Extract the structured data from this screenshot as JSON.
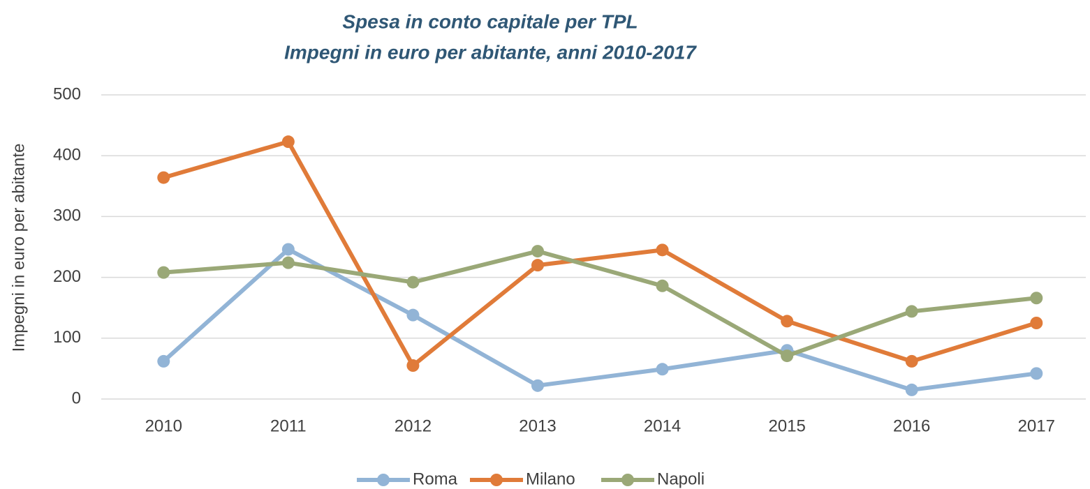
{
  "chart_data": {
    "type": "line",
    "title": "Spesa in conto capitale per TPL",
    "subtitle": "Impegni in euro per abitante, anni 2010-2017",
    "y_label": "Impegni  in euro per abitante",
    "categories": [
      "2010",
      "2011",
      "2012",
      "2013",
      "2014",
      "2015",
      "2016",
      "2017"
    ],
    "series": [
      {
        "name": "Roma",
        "color": "#92b4d6",
        "values": [
          62,
          246,
          138,
          22,
          49,
          80,
          15,
          42
        ]
      },
      {
        "name": "Milano",
        "color": "#e07b39",
        "values": [
          364,
          423,
          55,
          220,
          245,
          128,
          62,
          125
        ]
      },
      {
        "name": "Napoli",
        "color": "#9aa877",
        "values": [
          208,
          224,
          192,
          243,
          186,
          71,
          144,
          166
        ]
      }
    ],
    "ylim": [
      0,
      500
    ],
    "yticks": [
      0,
      100,
      200,
      300,
      400,
      500
    ],
    "grid": true,
    "legend": "bottom"
  }
}
